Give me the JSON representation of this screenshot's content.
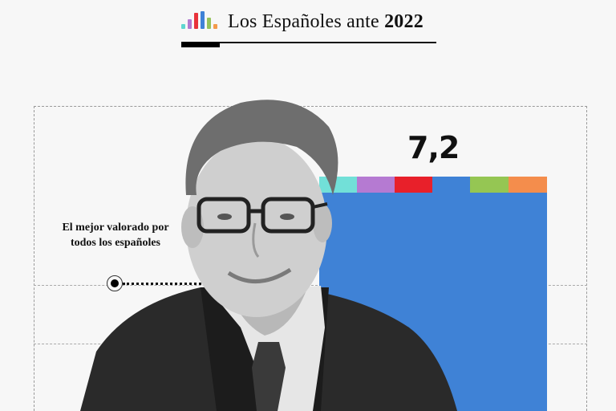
{
  "header": {
    "title_prefix": "Los Españoles ante ",
    "title_year": "2022",
    "logo_icon": "bar-chart-icon",
    "logo_colors": [
      "#5fd6d0",
      "#b27ad0",
      "#e8323a",
      "#3f82d6",
      "#95c35a",
      "#f39a4b"
    ]
  },
  "chart": {
    "value": "7,2",
    "bar_color": "#3f82d6",
    "strip_colors": [
      "#72e0d8",
      "#b57ad2",
      "#e8202a",
      "#3f82d6",
      "#95c653",
      "#f48d4c"
    ]
  },
  "annotation": {
    "text": "El mejor valorado por todos los españoles"
  }
}
